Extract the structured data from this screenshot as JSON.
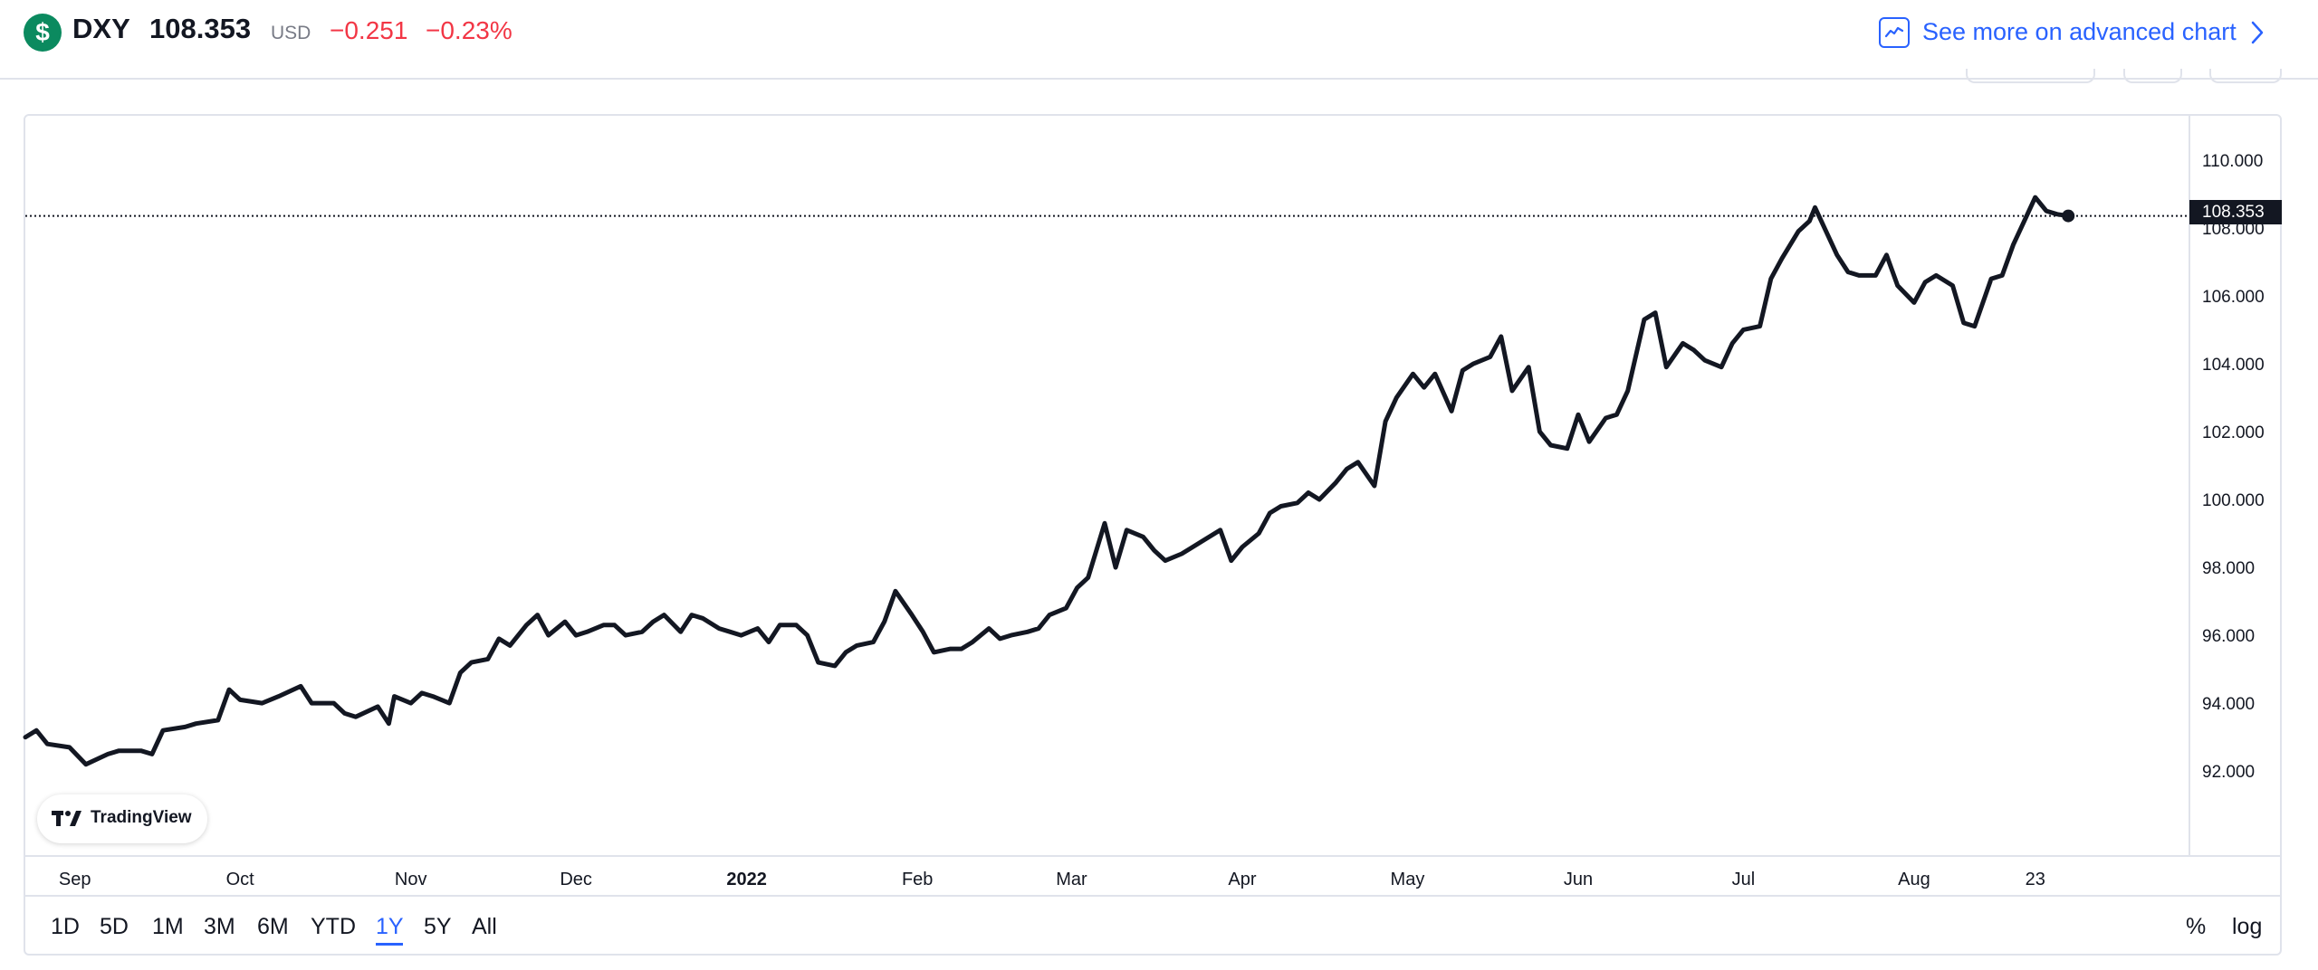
{
  "header": {
    "logo_glyph": "$",
    "symbol": "DXY",
    "last_price": "108.353",
    "currency": "USD",
    "change": "−0.251",
    "change_pct": "−0.23%",
    "advanced_chart_label": "See more on advanced chart",
    "advanced_chart_icon": "chart-line-icon",
    "advanced_chart_chevron": "chevron-right-icon"
  },
  "colors": {
    "line": "#131722",
    "up": "#089981",
    "down": "#f23645",
    "accent": "#2962ff",
    "logo": "#0b8a5f"
  },
  "branding": {
    "logo_icon": "tradingview-logo-icon",
    "label": "TradingView"
  },
  "range_bar": {
    "items": [
      "1D",
      "5D",
      "1M",
      "3M",
      "6M",
      "YTD",
      "1Y",
      "5Y",
      "All"
    ],
    "active": "1Y",
    "percent_label": "%",
    "log_label": "log"
  },
  "chart_data": {
    "type": "line",
    "title": "",
    "xlabel": "",
    "ylabel": "",
    "ylim": [
      89.5,
      111.3
    ],
    "grid": false,
    "y_ticks": [
      "110.000",
      "108.000",
      "106.000",
      "104.000",
      "102.000",
      "100.000",
      "98.000",
      "96.000",
      "94.000",
      "92.000"
    ],
    "x_ticks": [
      {
        "label": "Sep",
        "date": "2021-09-01",
        "bold": false
      },
      {
        "label": "Oct",
        "date": "2021-10-01",
        "bold": false
      },
      {
        "label": "Nov",
        "date": "2021-11-01",
        "bold": false
      },
      {
        "label": "Dec",
        "date": "2021-12-01",
        "bold": false
      },
      {
        "label": "2022",
        "date": "2022-01-01",
        "bold": true
      },
      {
        "label": "Feb",
        "date": "2022-02-01",
        "bold": false
      },
      {
        "label": "Mar",
        "date": "2022-03-01",
        "bold": false
      },
      {
        "label": "Apr",
        "date": "2022-04-01",
        "bold": false
      },
      {
        "label": "May",
        "date": "2022-05-01",
        "bold": false
      },
      {
        "label": "Jun",
        "date": "2022-06-01",
        "bold": false
      },
      {
        "label": "Jul",
        "date": "2022-07-01",
        "bold": false
      },
      {
        "label": "Aug",
        "date": "2022-08-01",
        "bold": false
      },
      {
        "label": "23",
        "date": "2022-08-23",
        "bold": false
      }
    ],
    "current_value": 108.353,
    "current_value_label": "108.353",
    "series": [
      {
        "values": [
          [
            "2021-08-23",
            93.0
          ],
          [
            "2021-08-25",
            93.2
          ],
          [
            "2021-08-27",
            92.8
          ],
          [
            "2021-08-31",
            92.7
          ],
          [
            "2021-09-03",
            92.2
          ],
          [
            "2021-09-07",
            92.5
          ],
          [
            "2021-09-09",
            92.6
          ],
          [
            "2021-09-13",
            92.6
          ],
          [
            "2021-09-15",
            92.5
          ],
          [
            "2021-09-17",
            93.2
          ],
          [
            "2021-09-21",
            93.3
          ],
          [
            "2021-09-23",
            93.4
          ],
          [
            "2021-09-27",
            93.5
          ],
          [
            "2021-09-29",
            94.4
          ],
          [
            "2021-10-01",
            94.1
          ],
          [
            "2021-10-05",
            94.0
          ],
          [
            "2021-10-08",
            94.2
          ],
          [
            "2021-10-12",
            94.5
          ],
          [
            "2021-10-14",
            94.0
          ],
          [
            "2021-10-18",
            94.0
          ],
          [
            "2021-10-20",
            93.7
          ],
          [
            "2021-10-22",
            93.6
          ],
          [
            "2021-10-26",
            93.9
          ],
          [
            "2021-10-28",
            93.4
          ],
          [
            "2021-10-29",
            94.2
          ],
          [
            "2021-11-01",
            94.0
          ],
          [
            "2021-11-03",
            94.3
          ],
          [
            "2021-11-05",
            94.2
          ],
          [
            "2021-11-08",
            94.0
          ],
          [
            "2021-11-10",
            94.9
          ],
          [
            "2021-11-12",
            95.2
          ],
          [
            "2021-11-15",
            95.3
          ],
          [
            "2021-11-17",
            95.9
          ],
          [
            "2021-11-19",
            95.7
          ],
          [
            "2021-11-22",
            96.3
          ],
          [
            "2021-11-24",
            96.6
          ],
          [
            "2021-11-26",
            96.0
          ],
          [
            "2021-11-29",
            96.4
          ],
          [
            "2021-12-01",
            96.0
          ],
          [
            "2021-12-03",
            96.1
          ],
          [
            "2021-12-06",
            96.3
          ],
          [
            "2021-12-08",
            96.3
          ],
          [
            "2021-12-10",
            96.0
          ],
          [
            "2021-12-13",
            96.1
          ],
          [
            "2021-12-15",
            96.4
          ],
          [
            "2021-12-17",
            96.6
          ],
          [
            "2021-12-20",
            96.1
          ],
          [
            "2021-12-22",
            96.6
          ],
          [
            "2021-12-24",
            96.5
          ],
          [
            "2021-12-27",
            96.2
          ],
          [
            "2021-12-29",
            96.1
          ],
          [
            "2021-12-31",
            96.0
          ],
          [
            "2022-01-03",
            96.2
          ],
          [
            "2022-01-05",
            95.8
          ],
          [
            "2022-01-07",
            96.3
          ],
          [
            "2022-01-10",
            96.3
          ],
          [
            "2022-01-12",
            96.0
          ],
          [
            "2022-01-14",
            95.2
          ],
          [
            "2022-01-17",
            95.1
          ],
          [
            "2022-01-19",
            95.5
          ],
          [
            "2022-01-21",
            95.7
          ],
          [
            "2022-01-24",
            95.8
          ],
          [
            "2022-01-26",
            96.4
          ],
          [
            "2022-01-28",
            97.3
          ],
          [
            "2022-01-31",
            96.6
          ],
          [
            "2022-02-02",
            96.1
          ],
          [
            "2022-02-04",
            95.5
          ],
          [
            "2022-02-07",
            95.6
          ],
          [
            "2022-02-09",
            95.6
          ],
          [
            "2022-02-11",
            95.8
          ],
          [
            "2022-02-14",
            96.2
          ],
          [
            "2022-02-16",
            95.9
          ],
          [
            "2022-02-18",
            96.0
          ],
          [
            "2022-02-21",
            96.1
          ],
          [
            "2022-02-23",
            96.2
          ],
          [
            "2022-02-25",
            96.6
          ],
          [
            "2022-02-28",
            96.8
          ],
          [
            "2022-03-02",
            97.4
          ],
          [
            "2022-03-04",
            97.7
          ],
          [
            "2022-03-07",
            99.3
          ],
          [
            "2022-03-09",
            98.0
          ],
          [
            "2022-03-11",
            99.1
          ],
          [
            "2022-03-14",
            98.9
          ],
          [
            "2022-03-16",
            98.5
          ],
          [
            "2022-03-18",
            98.2
          ],
          [
            "2022-03-21",
            98.4
          ],
          [
            "2022-03-23",
            98.6
          ],
          [
            "2022-03-25",
            98.8
          ],
          [
            "2022-03-28",
            99.1
          ],
          [
            "2022-03-30",
            98.2
          ],
          [
            "2022-04-01",
            98.6
          ],
          [
            "2022-04-04",
            99.0
          ],
          [
            "2022-04-06",
            99.6
          ],
          [
            "2022-04-08",
            99.8
          ],
          [
            "2022-04-11",
            99.9
          ],
          [
            "2022-04-13",
            100.2
          ],
          [
            "2022-04-15",
            100.0
          ],
          [
            "2022-04-18",
            100.5
          ],
          [
            "2022-04-20",
            100.9
          ],
          [
            "2022-04-22",
            101.1
          ],
          [
            "2022-04-25",
            100.4
          ],
          [
            "2022-04-27",
            102.3
          ],
          [
            "2022-04-29",
            103.0
          ],
          [
            "2022-05-02",
            103.7
          ],
          [
            "2022-05-04",
            103.3
          ],
          [
            "2022-05-06",
            103.7
          ],
          [
            "2022-05-09",
            102.6
          ],
          [
            "2022-05-11",
            103.8
          ],
          [
            "2022-05-13",
            104.0
          ],
          [
            "2022-05-16",
            104.2
          ],
          [
            "2022-05-18",
            104.8
          ],
          [
            "2022-05-20",
            103.2
          ],
          [
            "2022-05-23",
            103.9
          ],
          [
            "2022-05-25",
            102.0
          ],
          [
            "2022-05-27",
            101.6
          ],
          [
            "2022-05-30",
            101.5
          ],
          [
            "2022-06-01",
            102.5
          ],
          [
            "2022-06-03",
            101.7
          ],
          [
            "2022-06-06",
            102.4
          ],
          [
            "2022-06-08",
            102.5
          ],
          [
            "2022-06-10",
            103.2
          ],
          [
            "2022-06-13",
            105.3
          ],
          [
            "2022-06-15",
            105.5
          ],
          [
            "2022-06-17",
            103.9
          ],
          [
            "2022-06-20",
            104.6
          ],
          [
            "2022-06-22",
            104.4
          ],
          [
            "2022-06-24",
            104.1
          ],
          [
            "2022-06-27",
            103.9
          ],
          [
            "2022-06-29",
            104.6
          ],
          [
            "2022-07-01",
            105.0
          ],
          [
            "2022-07-04",
            105.1
          ],
          [
            "2022-07-06",
            106.5
          ],
          [
            "2022-07-08",
            107.1
          ],
          [
            "2022-07-11",
            107.9
          ],
          [
            "2022-07-13",
            108.2
          ],
          [
            "2022-07-14",
            108.6
          ],
          [
            "2022-07-18",
            107.2
          ],
          [
            "2022-07-20",
            106.7
          ],
          [
            "2022-07-22",
            106.6
          ],
          [
            "2022-07-25",
            106.6
          ],
          [
            "2022-07-27",
            107.2
          ],
          [
            "2022-07-29",
            106.3
          ],
          [
            "2022-08-01",
            105.8
          ],
          [
            "2022-08-03",
            106.4
          ],
          [
            "2022-08-05",
            106.6
          ],
          [
            "2022-08-08",
            106.3
          ],
          [
            "2022-08-10",
            105.2
          ],
          [
            "2022-08-12",
            105.1
          ],
          [
            "2022-08-15",
            106.5
          ],
          [
            "2022-08-17",
            106.6
          ],
          [
            "2022-08-19",
            107.5
          ],
          [
            "2022-08-21",
            108.2
          ],
          [
            "2022-08-23",
            108.9
          ],
          [
            "2022-08-25",
            108.5
          ],
          [
            "2022-08-27",
            108.4
          ],
          [
            "2022-08-29",
            108.353
          ]
        ]
      }
    ]
  }
}
